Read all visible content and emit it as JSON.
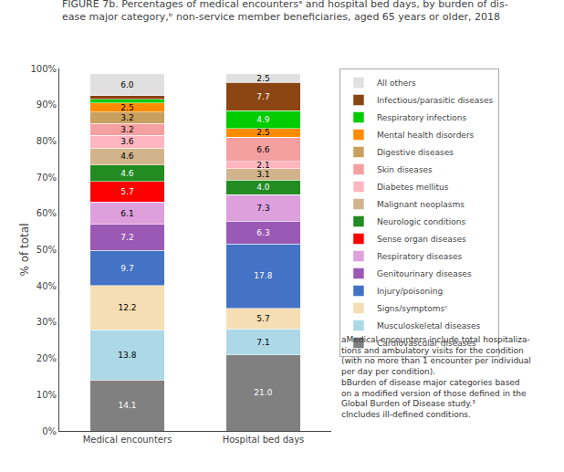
{
  "chart_data": {
    "type": "bar",
    "stacked": true,
    "data_labels": true,
    "grid": false,
    "legend": "right",
    "title": "FIGURE 7b. Percentages of medical encountersᵃ and hospital bed days, by burden of dis-\nease major category,ᵇ non-service member beneficiaries, aged 65 years or older, 2018",
    "ylabel": "% of total",
    "categories": [
      "Medical encounters",
      "Hospital bed days"
    ],
    "ylim": [
      0,
      100
    ],
    "yticks": [
      {
        "value": 0,
        "label": "0%"
      },
      {
        "value": 10,
        "label": "10%"
      },
      {
        "value": 20,
        "label": "20%"
      },
      {
        "value": 30,
        "label": "30%"
      },
      {
        "value": 40,
        "label": "40%"
      },
      {
        "value": 50,
        "label": "50%"
      },
      {
        "value": 60,
        "label": "60%"
      },
      {
        "value": 70,
        "label": "70%"
      },
      {
        "value": 80,
        "label": "80%"
      },
      {
        "value": 90,
        "label": "90%"
      },
      {
        "value": 100,
        "label": "100%"
      }
    ],
    "series": [
      {
        "name": "Cardiovascular diseases",
        "color": "#808080",
        "values": [
          14.1,
          21.0
        ],
        "value_labels": [
          "14.1",
          "21.0"
        ]
      },
      {
        "name": "Musculoskeletal diseases",
        "color": "#ADD8E6",
        "values": [
          13.8,
          7.1
        ],
        "value_labels": [
          "13.8",
          "7.1"
        ]
      },
      {
        "name": "Signs/symptomsᶜ",
        "color": "#F5DEB3",
        "values": [
          12.2,
          5.7
        ],
        "value_labels": [
          "12.2",
          "5.7"
        ]
      },
      {
        "name": "Injury/poisoning",
        "color": "#4472C4",
        "values": [
          9.7,
          17.8
        ],
        "value_labels": [
          "9.7",
          "17.8"
        ]
      },
      {
        "name": "Genitourinary diseases",
        "color": "#9B59B6",
        "values": [
          7.2,
          6.3
        ],
        "value_labels": [
          "7.2",
          "6.3"
        ]
      },
      {
        "name": "Respiratory diseases",
        "color": "#DDA0DD",
        "values": [
          6.1,
          7.3
        ],
        "value_labels": [
          "6.1",
          "7.3"
        ]
      },
      {
        "name": "Sense organ diseases",
        "color": "#FF0000",
        "values": [
          5.7,
          0.0
        ],
        "value_labels": [
          "5.7",
          null
        ]
      },
      {
        "name": "Neurologic conditions",
        "color": "#228B22",
        "values": [
          4.6,
          4.0
        ],
        "value_labels": [
          "4.6",
          "4.0"
        ]
      },
      {
        "name": "Malignant neoplasms",
        "color": "#D2B48C",
        "values": [
          4.6,
          3.1
        ],
        "value_labels": [
          "4.6",
          "3.1"
        ]
      },
      {
        "name": "Diabetes mellitus",
        "color": "#FFB6C1",
        "values": [
          3.6,
          2.1
        ],
        "value_labels": [
          "3.6",
          "2.1"
        ]
      },
      {
        "name": "Skin diseases",
        "color": "#F4A0A0",
        "values": [
          3.2,
          6.6
        ],
        "value_labels": [
          "3.2",
          "6.6"
        ]
      },
      {
        "name": "Digestive diseases",
        "color": "#C8A060",
        "values": [
          3.2,
          0.0
        ],
        "value_labels": [
          "3.2",
          null
        ]
      },
      {
        "name": "Mental health disorders",
        "color": "#FF8C00",
        "values": [
          2.5,
          2.5
        ],
        "value_labels": [
          "2.5",
          "2.5"
        ]
      },
      {
        "name": "Respiratory infections",
        "color": "#00cc00",
        "values": [
          1.0,
          4.9
        ],
        "value_labels": [
          null,
          "4.9"
        ]
      },
      {
        "name": "Infectious/parasitic diseases",
        "color": "#8B4513",
        "values": [
          1.0,
          7.7
        ],
        "value_labels": [
          null,
          "7.7"
        ]
      },
      {
        "name": "All others",
        "color": "#e0e0e0",
        "values": [
          6.0,
          2.5
        ],
        "value_labels": [
          "6.0",
          "2.5"
        ]
      }
    ],
    "annotations": [
      "aMedical encounters include total hospitaliza-\ntions and ambulatory visits for the condition\n(with no more than 1 encounter per individual\nper day per condition).\nbBurden of disease major categories based\non a modified version of those defined in the\nGlobal Burden of Disease study.³\ncIncludes ill-defined conditions."
    ]
  }
}
